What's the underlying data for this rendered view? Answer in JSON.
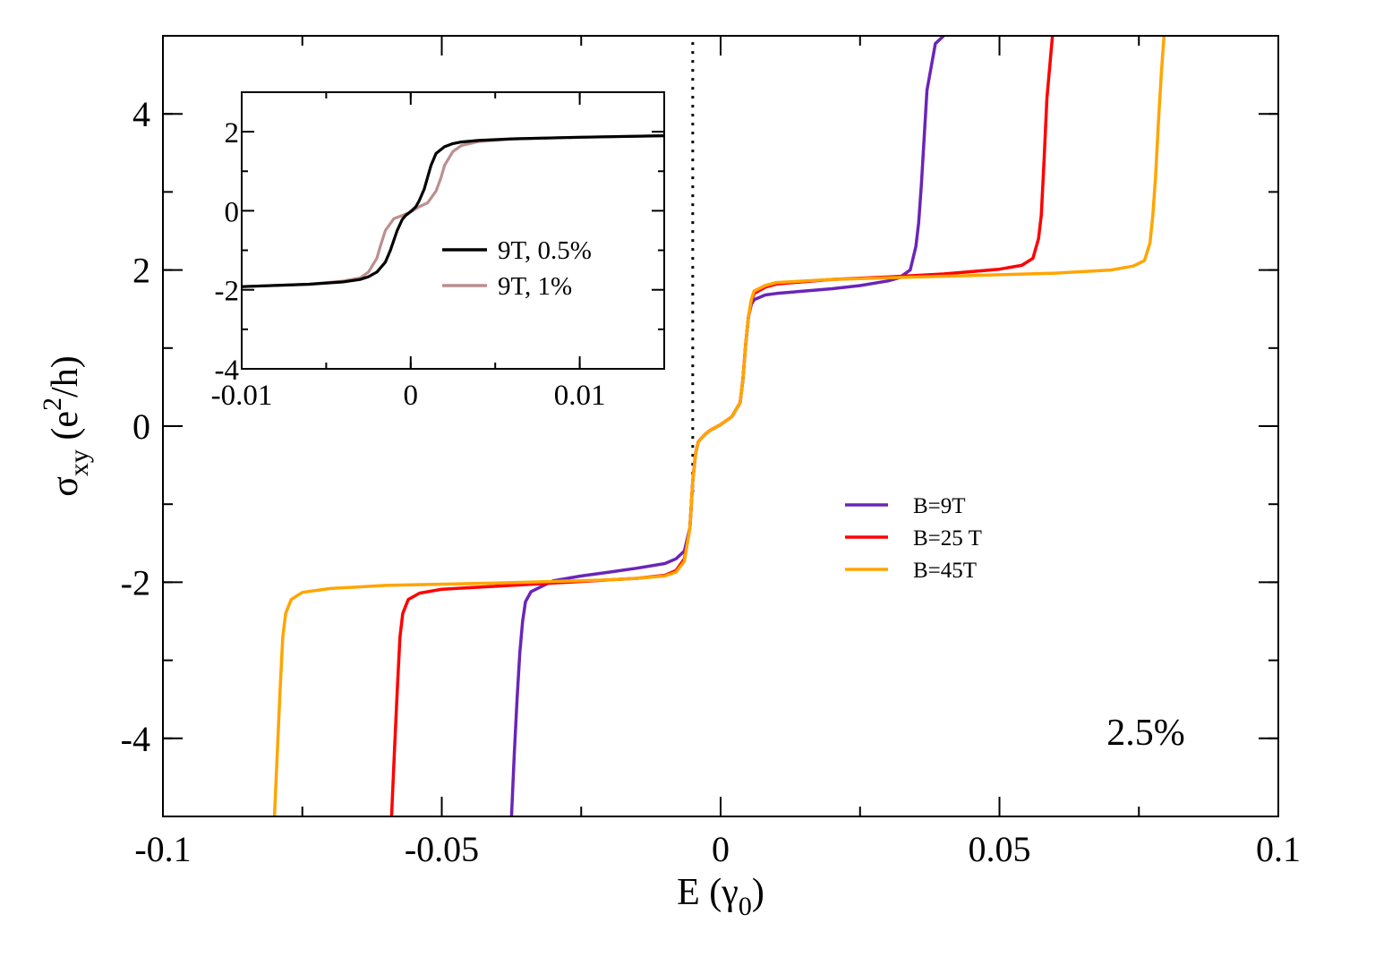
{
  "chart_data": [
    {
      "type": "line",
      "xlabel": "E (γ0)",
      "ylabel": "σxy (e2/h)",
      "xlim": [
        -0.1,
        0.1
      ],
      "ylim": [
        -5,
        5
      ],
      "x_ticks": [
        -0.1,
        -0.05,
        0,
        0.05,
        0.1
      ],
      "x_tick_labels": [
        "-0.1",
        "-0.05",
        "0",
        "0.05",
        "0.1"
      ],
      "y_ticks": [
        -4,
        -2,
        0,
        2,
        4
      ],
      "y_tick_labels": [
        "-4",
        "-2",
        "0",
        "2",
        "4"
      ],
      "vertical_reference_line": {
        "x": -0.005,
        "y_from": -0.85,
        "y_to": 5,
        "style": "dotted"
      },
      "annotation": "2.5%",
      "legend_position": "center-right",
      "grid": false,
      "series": [
        {
          "name": "B=9T",
          "color": "#6a25b8",
          "x": [
            -0.0375,
            -0.037,
            -0.0365,
            -0.036,
            -0.0355,
            -0.035,
            -0.034,
            -0.032,
            -0.03,
            -0.025,
            -0.02,
            -0.015,
            -0.01,
            -0.008,
            -0.0065,
            -0.0055,
            -0.005,
            -0.0045,
            -0.004,
            -0.003,
            -0.002,
            0,
            0.002,
            0.0035,
            0.004,
            0.0045,
            0.005,
            0.0055,
            0.006,
            0.008,
            0.01,
            0.015,
            0.02,
            0.025,
            0.03,
            0.032,
            0.034,
            0.035,
            0.0355,
            0.036,
            0.0365,
            0.037,
            0.0385,
            0.04
          ],
          "y": [
            -5,
            -4.2,
            -3.5,
            -2.9,
            -2.5,
            -2.25,
            -2.12,
            -2.05,
            -1.98,
            -1.92,
            -1.87,
            -1.82,
            -1.76,
            -1.7,
            -1.6,
            -1.3,
            -0.7,
            -0.35,
            -0.2,
            -0.12,
            -0.06,
            0.02,
            0.12,
            0.3,
            0.6,
            1.05,
            1.4,
            1.56,
            1.62,
            1.68,
            1.7,
            1.73,
            1.76,
            1.8,
            1.86,
            1.9,
            2.0,
            2.3,
            2.6,
            3.1,
            3.7,
            4.3,
            4.9,
            5
          ]
        },
        {
          "name": "B=25 T",
          "color": "#ff0000",
          "x": [
            -0.059,
            -0.0585,
            -0.058,
            -0.0575,
            -0.057,
            -0.056,
            -0.054,
            -0.05,
            -0.04,
            -0.03,
            -0.02,
            -0.015,
            -0.01,
            -0.008,
            -0.0065,
            -0.0055,
            -0.005,
            -0.0045,
            -0.004,
            -0.003,
            -0.002,
            0,
            0.002,
            0.0035,
            0.004,
            0.0045,
            0.005,
            0.0055,
            0.006,
            0.008,
            0.01,
            0.02,
            0.03,
            0.04,
            0.05,
            0.054,
            0.056,
            0.057,
            0.0575,
            0.058,
            0.0585,
            0.0595
          ],
          "y": [
            -5,
            -4.2,
            -3.4,
            -2.7,
            -2.4,
            -2.22,
            -2.14,
            -2.09,
            -2.05,
            -2.01,
            -1.97,
            -1.95,
            -1.91,
            -1.85,
            -1.7,
            -1.3,
            -0.7,
            -0.35,
            -0.2,
            -0.12,
            -0.06,
            0.02,
            0.12,
            0.3,
            0.6,
            1.05,
            1.4,
            1.6,
            1.7,
            1.78,
            1.82,
            1.88,
            1.91,
            1.95,
            2.01,
            2.06,
            2.15,
            2.4,
            2.7,
            3.4,
            4.2,
            5
          ]
        },
        {
          "name": "B=45T",
          "color": "#ffa500",
          "x": [
            -0.08,
            -0.0795,
            -0.079,
            -0.0785,
            -0.078,
            -0.077,
            -0.075,
            -0.07,
            -0.06,
            -0.04,
            -0.02,
            -0.015,
            -0.01,
            -0.008,
            -0.0065,
            -0.0055,
            -0.005,
            -0.0045,
            -0.004,
            -0.003,
            -0.002,
            0,
            0.002,
            0.0035,
            0.004,
            0.0045,
            0.005,
            0.0055,
            0.006,
            0.008,
            0.01,
            0.02,
            0.04,
            0.06,
            0.07,
            0.074,
            0.076,
            0.077,
            0.0775,
            0.078,
            0.0785,
            0.079,
            0.0795
          ],
          "y": [
            -5,
            -4.2,
            -3.4,
            -2.7,
            -2.4,
            -2.22,
            -2.13,
            -2.08,
            -2.04,
            -2.01,
            -1.97,
            -1.95,
            -1.92,
            -1.87,
            -1.73,
            -1.3,
            -0.7,
            -0.35,
            -0.2,
            -0.12,
            -0.06,
            0.02,
            0.12,
            0.3,
            0.6,
            1.05,
            1.4,
            1.62,
            1.73,
            1.8,
            1.84,
            1.88,
            1.92,
            1.96,
            2.0,
            2.05,
            2.12,
            2.35,
            2.7,
            3.2,
            3.9,
            4.5,
            5
          ]
        }
      ]
    },
    {
      "type": "line",
      "inset": true,
      "xlim": [
        -0.01,
        0.015
      ],
      "ylim": [
        -4,
        3
      ],
      "x_ticks": [
        -0.01,
        0,
        0.01
      ],
      "x_tick_labels": [
        "-0.01",
        "0",
        "0.01"
      ],
      "y_ticks": [
        -4,
        -2,
        0,
        2
      ],
      "y_tick_labels": [
        "-4",
        "-2",
        "0",
        "2"
      ],
      "legend_position": "center-right",
      "grid": false,
      "series": [
        {
          "name": "9T, 0.5%",
          "color": "#000000",
          "x": [
            -0.01,
            -0.006,
            -0.004,
            -0.003,
            -0.0025,
            -0.002,
            -0.0015,
            -0.0012,
            -0.001,
            -0.0008,
            -0.0005,
            -0.0003,
            0,
            0.0003,
            0.0005,
            0.0008,
            0.001,
            0.0012,
            0.0015,
            0.002,
            0.0025,
            0.003,
            0.004,
            0.006,
            0.01,
            0.015
          ],
          "y": [
            -1.92,
            -1.86,
            -1.8,
            -1.74,
            -1.67,
            -1.55,
            -1.3,
            -1.0,
            -0.75,
            -0.5,
            -0.22,
            -0.12,
            -0.02,
            0.1,
            0.25,
            0.55,
            0.85,
            1.15,
            1.45,
            1.62,
            1.7,
            1.74,
            1.78,
            1.82,
            1.86,
            1.9
          ]
        },
        {
          "name": "9T, 1%",
          "color": "#bc8f8f",
          "x": [
            -0.01,
            -0.006,
            -0.004,
            -0.003,
            -0.0025,
            -0.002,
            -0.0018,
            -0.0015,
            -0.001,
            -0.0005,
            0,
            0.0005,
            0.001,
            0.0015,
            0.0018,
            0.002,
            0.0025,
            0.003,
            0.004,
            0.006,
            0.01,
            0.015
          ],
          "y": [
            -1.92,
            -1.86,
            -1.78,
            -1.7,
            -1.55,
            -1.2,
            -0.9,
            -0.5,
            -0.2,
            -0.12,
            -0.03,
            0.1,
            0.2,
            0.5,
            0.85,
            1.15,
            1.5,
            1.65,
            1.75,
            1.82,
            1.86,
            1.9
          ]
        }
      ]
    }
  ]
}
